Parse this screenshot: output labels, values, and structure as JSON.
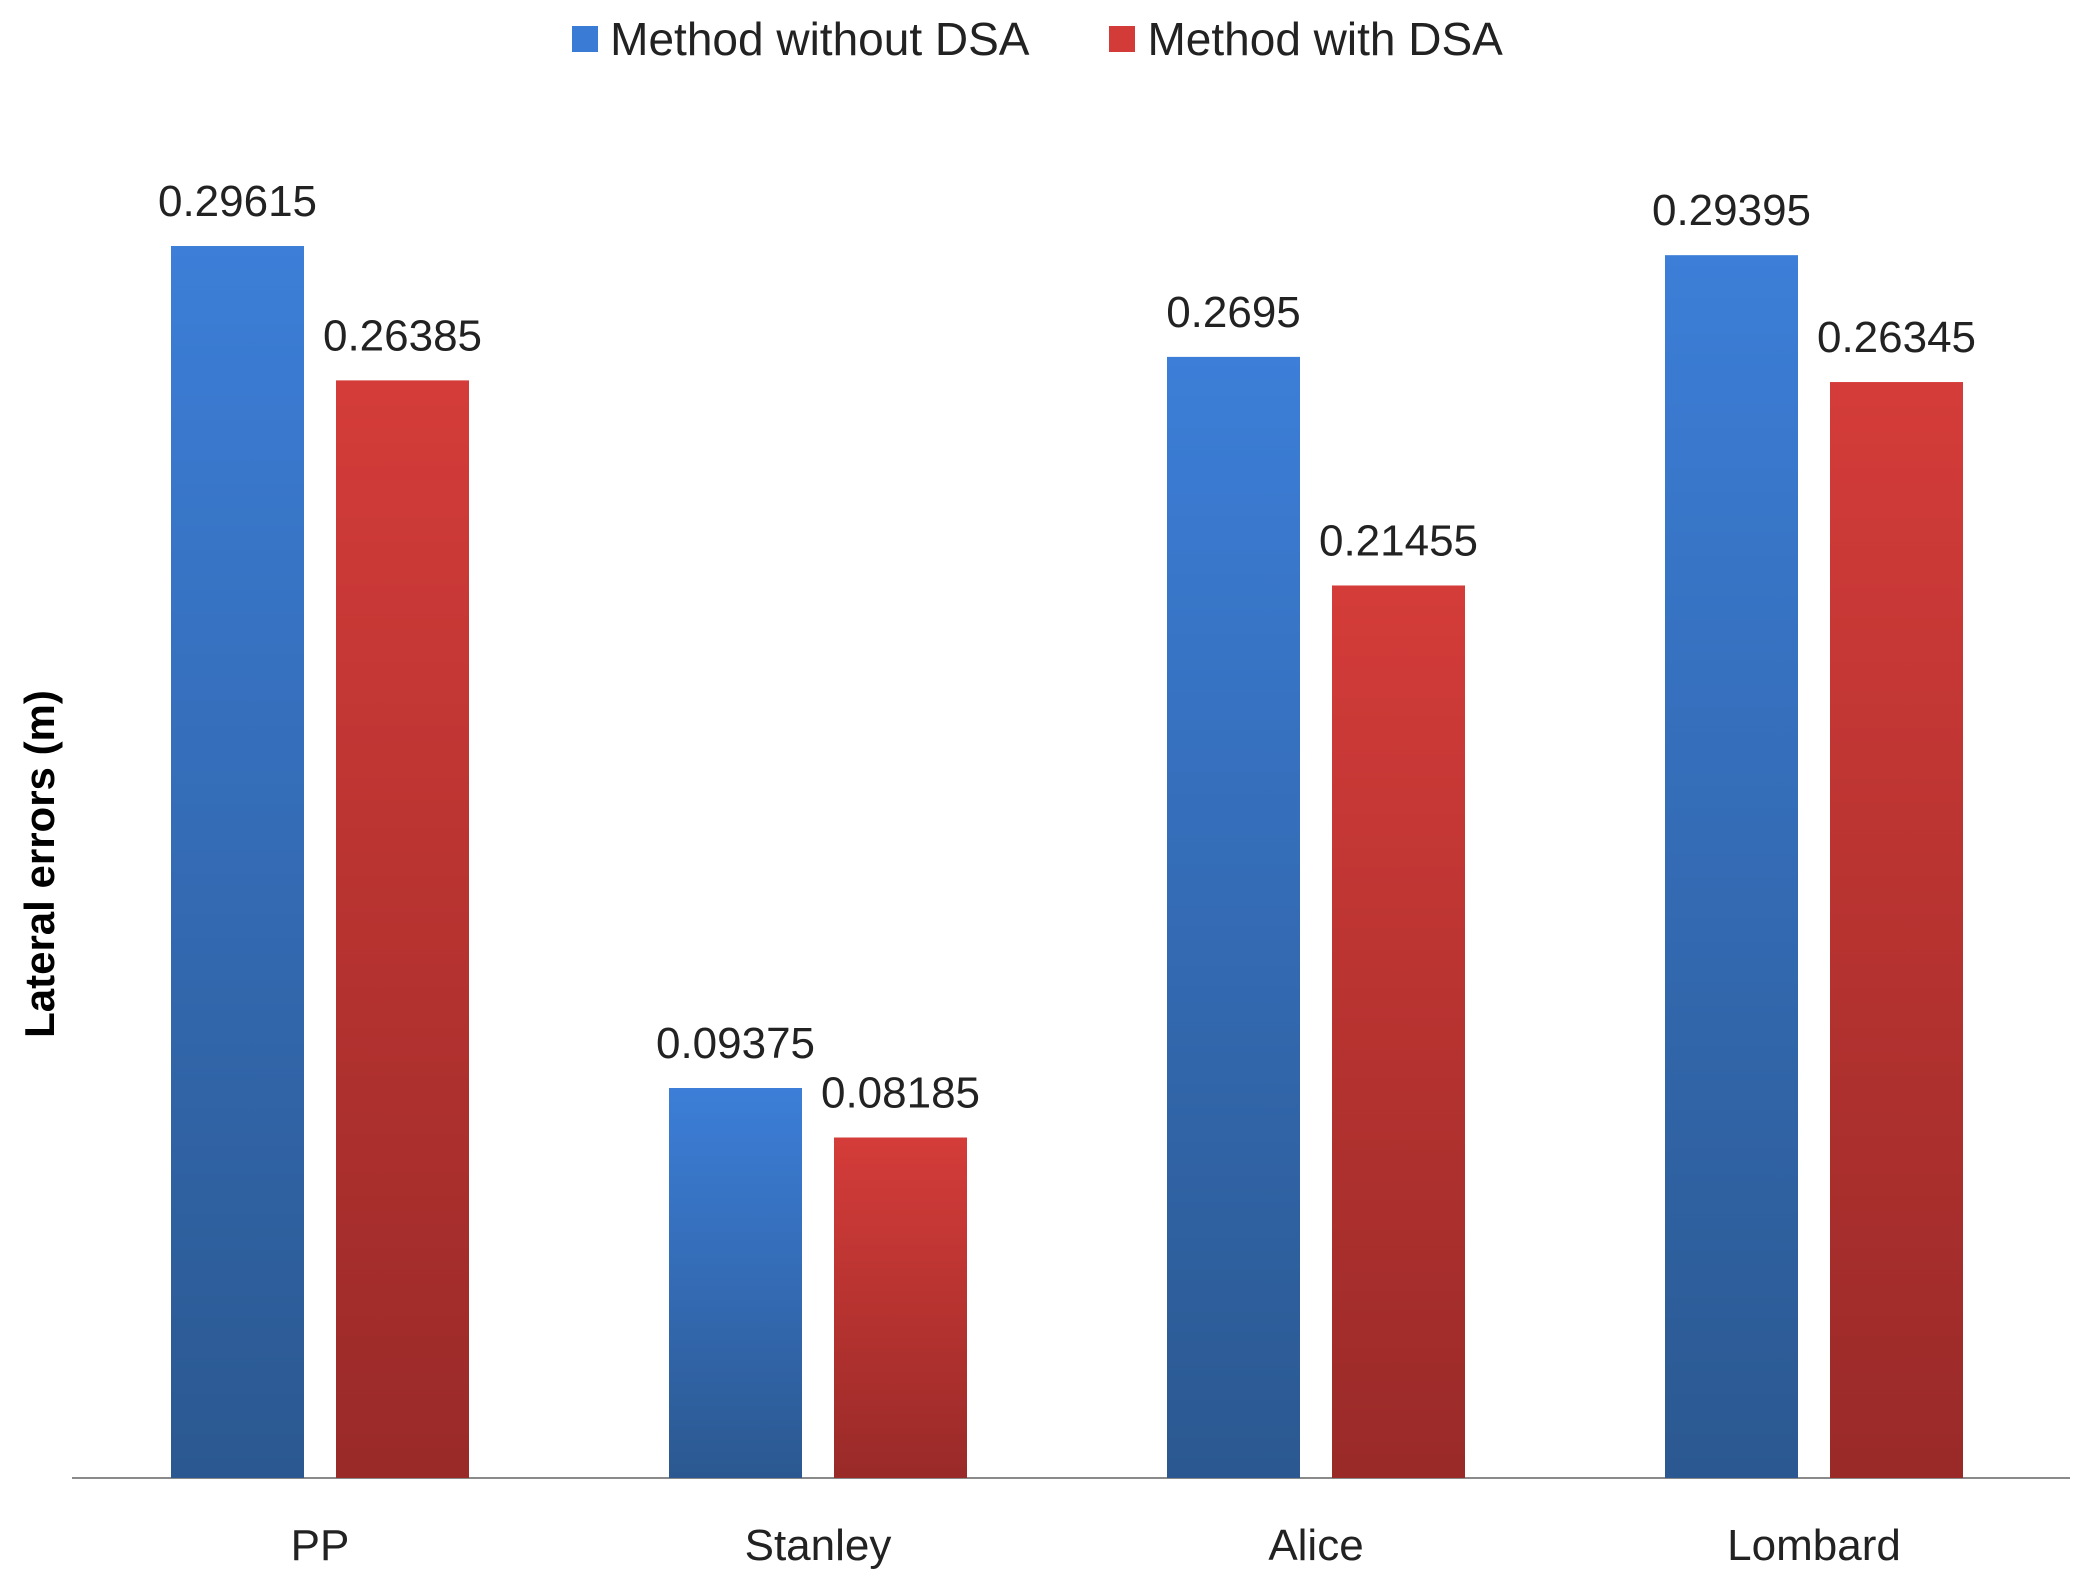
{
  "chart_data": {
    "type": "bar",
    "title": "",
    "xlabel": "",
    "ylabel": "Lateral errors (m)",
    "ylim": [
      0,
      0.3
    ],
    "legend_position": "top-center",
    "grid": false,
    "categories": [
      "PP",
      "Stanley",
      "Alice",
      "Lombard"
    ],
    "series": [
      {
        "name": "Method without DSA",
        "values": [
          0.29615,
          0.09375,
          0.2695,
          0.29395
        ],
        "labels": [
          "0.29615",
          "0.09375",
          "0.2695",
          "0.29395"
        ],
        "color": "#3A7BD5",
        "colorDark": "#2C5A94"
      },
      {
        "name": "Method with DSA",
        "values": [
          0.26385,
          0.08185,
          0.21455,
          0.26345
        ],
        "labels": [
          "0.26385",
          "0.08185",
          "0.21455",
          "0.26345"
        ],
        "color": "#D23B38",
        "colorDark": "#9C2A28"
      }
    ]
  }
}
